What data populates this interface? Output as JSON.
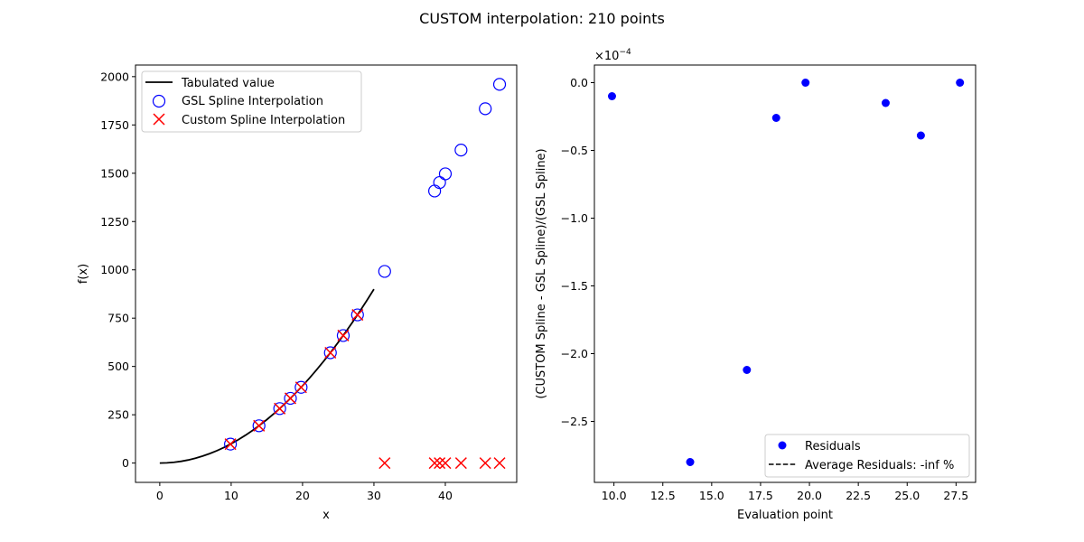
{
  "figure": {
    "title": "CUSTOM interpolation: 210 points"
  },
  "chart_data": [
    {
      "type": "scatter",
      "xlabel": "x",
      "ylabel": "f(x)",
      "xlim": [
        -3.4,
        50.0
      ],
      "ylim": [
        -100,
        2060
      ],
      "xticks": [
        0,
        10,
        20,
        30,
        40
      ],
      "xtick_labels": [
        "0",
        "10",
        "20",
        "30",
        "40"
      ],
      "yticks": [
        0,
        250,
        500,
        750,
        1000,
        1250,
        1500,
        1750,
        2000
      ],
      "ytick_labels": [
        "0",
        "250",
        "500",
        "750",
        "1000",
        "1250",
        "1500",
        "1750",
        "2000"
      ],
      "grid": false,
      "legend_position": "upper-left",
      "series": [
        {
          "name": "Tabulated value",
          "kind": "line",
          "color": "#000000",
          "x": [
            0,
            1,
            2,
            3,
            4,
            5,
            6,
            7,
            8,
            9,
            10,
            11,
            12,
            13,
            14,
            15,
            16,
            17,
            18,
            19,
            20,
            21,
            22,
            23,
            24,
            25,
            26,
            27,
            28,
            29,
            30
          ],
          "y": [
            0,
            1,
            4,
            9,
            16,
            25,
            36,
            49,
            64,
            81,
            100,
            121,
            144,
            169,
            196,
            225,
            256,
            289,
            324,
            361,
            400,
            441,
            484,
            529,
            576,
            625,
            676,
            729,
            784,
            841,
            900
          ]
        },
        {
          "name": "GSL Spline Interpolation",
          "kind": "scatter",
          "marker": "open-circle",
          "color": "#0000ff",
          "x": [
            9.9,
            13.9,
            16.8,
            18.3,
            19.8,
            23.9,
            25.7,
            27.7,
            31.5,
            38.5,
            39.2,
            40.0,
            42.2,
            45.6,
            47.6
          ],
          "y": [
            98,
            193,
            282,
            335,
            392,
            571,
            660,
            767,
            992,
            1408,
            1452,
            1497,
            1620,
            1834,
            1960
          ]
        },
        {
          "name": "Custom Spline Interpolation",
          "kind": "scatter",
          "marker": "x",
          "color": "#ff0000",
          "x": [
            9.9,
            13.9,
            16.8,
            18.3,
            19.8,
            23.9,
            25.7,
            27.7,
            31.5,
            38.5,
            39.2,
            40.0,
            42.2,
            45.6,
            47.6
          ],
          "y": [
            98,
            193,
            282,
            335,
            392,
            571,
            660,
            767,
            0,
            0,
            0,
            0,
            0,
            0,
            0
          ]
        }
      ]
    },
    {
      "type": "scatter",
      "xlabel": "Evaluation point",
      "ylabel": "(CUSTOM Spline -  GSL Spline)/(GSL Spline)",
      "offset_text": "×10",
      "offset_exponent": "−4",
      "xlim": [
        9.0,
        28.5
      ],
      "ylim": [
        -2.95,
        0.13
      ],
      "xticks": [
        10.0,
        12.5,
        15.0,
        17.5,
        20.0,
        22.5,
        25.0,
        27.5
      ],
      "xtick_labels": [
        "10.0",
        "12.5",
        "15.0",
        "17.5",
        "20.0",
        "22.5",
        "25.0",
        "27.5"
      ],
      "yticks": [
        0.0,
        -0.5,
        -1.0,
        -1.5,
        -2.0,
        -2.5
      ],
      "ytick_labels": [
        "0.0",
        "−0.5",
        "−1.0",
        "−1.5",
        "−2.0",
        "−2.5"
      ],
      "grid": false,
      "legend_position": "lower-right",
      "series": [
        {
          "name": "Residuals",
          "kind": "scatter",
          "marker": "filled-circle",
          "color": "#0000ff",
          "x": [
            9.9,
            13.9,
            16.8,
            18.3,
            19.8,
            23.9,
            25.7,
            27.7
          ],
          "y": [
            -0.1,
            -2.8,
            -2.12,
            -0.26,
            0.0,
            -0.15,
            -0.39,
            0.0
          ]
        },
        {
          "name": "Average Residuals: -inf %",
          "kind": "line",
          "style": "dashed",
          "color": "#000000",
          "x": [],
          "y": []
        }
      ]
    }
  ]
}
